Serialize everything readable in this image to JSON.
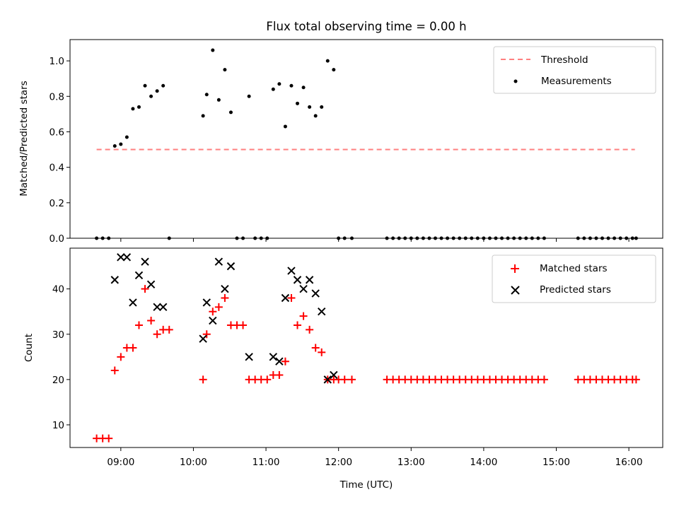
{
  "chart_data": [
    {
      "type": "scatter",
      "title": "Flux total observing time = 0.00 h",
      "xlabel": "",
      "ylabel": "Matched/Predicted stars",
      "ylim": [
        0,
        1.12
      ],
      "yticks": [
        "0.0",
        "0.2",
        "0.4",
        "0.6",
        "0.8",
        "1.0"
      ],
      "grid": false,
      "legend": "top-right",
      "threshold": {
        "name": "Threshold",
        "value": 0.5,
        "x_start": "08:40",
        "x_end": "16:05",
        "color": "#ff7f7f"
      },
      "series": [
        {
          "name": "Measurements",
          "color": "#000000",
          "points": [
            [
              "08:40",
              0.0
            ],
            [
              "08:45",
              0.0
            ],
            [
              "08:50",
              0.0
            ],
            [
              "08:55",
              0.52
            ],
            [
              "09:00",
              0.53
            ],
            [
              "09:05",
              0.57
            ],
            [
              "09:10",
              0.73
            ],
            [
              "09:15",
              0.74
            ],
            [
              "09:20",
              0.86
            ],
            [
              "09:25",
              0.8
            ],
            [
              "09:30",
              0.83
            ],
            [
              "09:35",
              0.86
            ],
            [
              "09:40",
              0.0
            ],
            [
              "10:08",
              0.69
            ],
            [
              "10:11",
              0.81
            ],
            [
              "10:16",
              1.06
            ],
            [
              "10:21",
              0.78
            ],
            [
              "10:26",
              0.95
            ],
            [
              "10:31",
              0.71
            ],
            [
              "10:36",
              0.0
            ],
            [
              "10:41",
              0.0
            ],
            [
              "10:46",
              0.8
            ],
            [
              "10:51",
              0.0
            ],
            [
              "10:56",
              0.0
            ],
            [
              "11:01",
              0.0
            ],
            [
              "11:06",
              0.84
            ],
            [
              "11:11",
              0.87
            ],
            [
              "11:16",
              0.63
            ],
            [
              "11:21",
              0.86
            ],
            [
              "11:26",
              0.76
            ],
            [
              "11:31",
              0.85
            ],
            [
              "11:36",
              0.74
            ],
            [
              "11:41",
              0.69
            ],
            [
              "11:46",
              0.74
            ],
            [
              "11:51",
              1.0
            ],
            [
              "11:56",
              0.95
            ],
            [
              "12:00",
              0.0
            ],
            [
              "12:05",
              0.0
            ],
            [
              "12:11",
              0.0
            ],
            [
              "12:40",
              0.0
            ],
            [
              "12:45",
              0.0
            ],
            [
              "12:50",
              0.0
            ],
            [
              "12:55",
              0.0
            ],
            [
              "13:00",
              0.0
            ],
            [
              "13:05",
              0.0
            ],
            [
              "13:10",
              0.0
            ],
            [
              "13:15",
              0.0
            ],
            [
              "13:20",
              0.0
            ],
            [
              "13:25",
              0.0
            ],
            [
              "13:30",
              0.0
            ],
            [
              "13:35",
              0.0
            ],
            [
              "13:40",
              0.0
            ],
            [
              "13:45",
              0.0
            ],
            [
              "13:50",
              0.0
            ],
            [
              "13:55",
              0.0
            ],
            [
              "14:00",
              0.0
            ],
            [
              "14:05",
              0.0
            ],
            [
              "14:10",
              0.0
            ],
            [
              "14:15",
              0.0
            ],
            [
              "14:20",
              0.0
            ],
            [
              "14:25",
              0.0
            ],
            [
              "14:30",
              0.0
            ],
            [
              "14:35",
              0.0
            ],
            [
              "14:40",
              0.0
            ],
            [
              "14:45",
              0.0
            ],
            [
              "14:50",
              0.0
            ],
            [
              "15:18",
              0.0
            ],
            [
              "15:23",
              0.0
            ],
            [
              "15:28",
              0.0
            ],
            [
              "15:33",
              0.0
            ],
            [
              "15:38",
              0.0
            ],
            [
              "15:43",
              0.0
            ],
            [
              "15:48",
              0.0
            ],
            [
              "15:53",
              0.0
            ],
            [
              "15:58",
              0.0
            ],
            [
              "16:03",
              0.0
            ],
            [
              "16:06",
              0.0
            ]
          ]
        }
      ]
    },
    {
      "type": "scatter",
      "title": "",
      "xlabel": "Time (UTC)",
      "ylabel": "Count",
      "ylim": [
        5,
        49
      ],
      "yticks": [
        "10",
        "20",
        "30",
        "40"
      ],
      "xticks": [
        "09:00",
        "10:00",
        "11:00",
        "12:00",
        "13:00",
        "14:00",
        "15:00",
        "16:00"
      ],
      "xlim": [
        "08:18",
        "16:28"
      ],
      "grid": false,
      "legend": "top-right",
      "series": [
        {
          "name": "Matched stars",
          "marker": "plus",
          "color": "#ff0000",
          "points": [
            [
              "08:40",
              7
            ],
            [
              "08:45",
              7
            ],
            [
              "08:50",
              7
            ],
            [
              "08:55",
              22
            ],
            [
              "09:00",
              25
            ],
            [
              "09:05",
              27
            ],
            [
              "09:10",
              27
            ],
            [
              "09:15",
              32
            ],
            [
              "09:20",
              40
            ],
            [
              "09:25",
              33
            ],
            [
              "09:30",
              30
            ],
            [
              "09:35",
              31
            ],
            [
              "09:40",
              31
            ],
            [
              "10:08",
              20
            ],
            [
              "10:11",
              30
            ],
            [
              "10:16",
              35
            ],
            [
              "10:21",
              36
            ],
            [
              "10:26",
              38
            ],
            [
              "10:31",
              32
            ],
            [
              "10:36",
              32
            ],
            [
              "10:41",
              32
            ],
            [
              "10:46",
              20
            ],
            [
              "10:51",
              20
            ],
            [
              "10:56",
              20
            ],
            [
              "11:01",
              20
            ],
            [
              "11:06",
              21
            ],
            [
              "11:11",
              21
            ],
            [
              "11:16",
              24
            ],
            [
              "11:21",
              38
            ],
            [
              "11:26",
              32
            ],
            [
              "11:31",
              34
            ],
            [
              "11:36",
              31
            ],
            [
              "11:41",
              27
            ],
            [
              "11:46",
              26
            ],
            [
              "11:51",
              20
            ],
            [
              "11:56",
              20
            ],
            [
              "12:00",
              20
            ],
            [
              "12:05",
              20
            ],
            [
              "12:11",
              20
            ],
            [
              "12:40",
              20
            ],
            [
              "12:45",
              20
            ],
            [
              "12:50",
              20
            ],
            [
              "12:55",
              20
            ],
            [
              "13:00",
              20
            ],
            [
              "13:05",
              20
            ],
            [
              "13:10",
              20
            ],
            [
              "13:15",
              20
            ],
            [
              "13:20",
              20
            ],
            [
              "13:25",
              20
            ],
            [
              "13:30",
              20
            ],
            [
              "13:35",
              20
            ],
            [
              "13:40",
              20
            ],
            [
              "13:45",
              20
            ],
            [
              "13:50",
              20
            ],
            [
              "13:55",
              20
            ],
            [
              "14:00",
              20
            ],
            [
              "14:05",
              20
            ],
            [
              "14:10",
              20
            ],
            [
              "14:15",
              20
            ],
            [
              "14:20",
              20
            ],
            [
              "14:25",
              20
            ],
            [
              "14:30",
              20
            ],
            [
              "14:35",
              20
            ],
            [
              "14:40",
              20
            ],
            [
              "14:45",
              20
            ],
            [
              "14:50",
              20
            ],
            [
              "15:18",
              20
            ],
            [
              "15:23",
              20
            ],
            [
              "15:28",
              20
            ],
            [
              "15:33",
              20
            ],
            [
              "15:38",
              20
            ],
            [
              "15:43",
              20
            ],
            [
              "15:48",
              20
            ],
            [
              "15:53",
              20
            ],
            [
              "15:58",
              20
            ],
            [
              "16:03",
              20
            ],
            [
              "16:06",
              20
            ]
          ]
        },
        {
          "name": "Predicted stars",
          "marker": "x",
          "color": "#000000",
          "points": [
            [
              "08:55",
              42
            ],
            [
              "09:00",
              47
            ],
            [
              "09:05",
              47
            ],
            [
              "09:10",
              37
            ],
            [
              "09:15",
              43
            ],
            [
              "09:20",
              46
            ],
            [
              "09:25",
              41
            ],
            [
              "09:30",
              36
            ],
            [
              "09:35",
              36
            ],
            [
              "10:08",
              29
            ],
            [
              "10:11",
              37
            ],
            [
              "10:16",
              33
            ],
            [
              "10:21",
              46
            ],
            [
              "10:26",
              40
            ],
            [
              "10:31",
              45
            ],
            [
              "10:46",
              25
            ],
            [
              "11:06",
              25
            ],
            [
              "11:11",
              24
            ],
            [
              "11:16",
              38
            ],
            [
              "11:21",
              44
            ],
            [
              "11:26",
              42
            ],
            [
              "11:31",
              40
            ],
            [
              "11:36",
              42
            ],
            [
              "11:41",
              39
            ],
            [
              "11:46",
              35
            ],
            [
              "11:51",
              20
            ],
            [
              "11:56",
              21
            ]
          ]
        }
      ]
    }
  ]
}
